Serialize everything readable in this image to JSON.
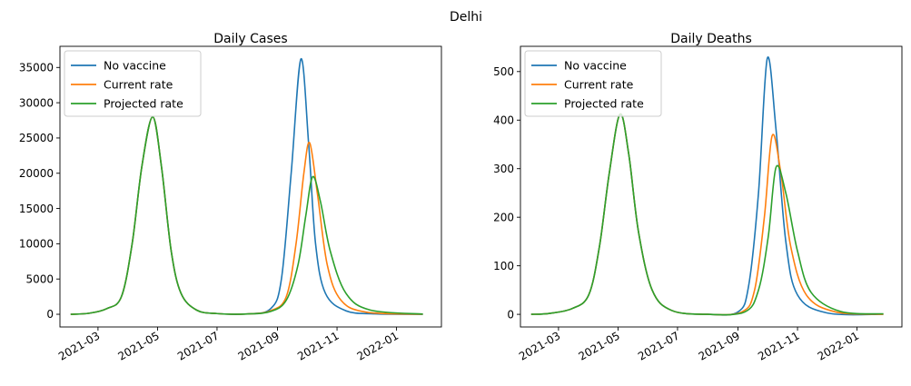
{
  "figure": {
    "title": "Delhi"
  },
  "chart_data": [
    {
      "type": "line",
      "title": "Daily Cases",
      "xlabel": "",
      "ylabel": "",
      "x_axis": "date",
      "xlim": [
        "2021-01-21",
        "2022-02-16"
      ],
      "ylim": [
        -1800,
        38000
      ],
      "x_ticks": [
        "2021-03",
        "2021-05",
        "2021-07",
        "2021-09",
        "2021-11",
        "2022-01"
      ],
      "y_ticks": [
        0,
        5000,
        10000,
        15000,
        20000,
        25000,
        30000,
        35000
      ],
      "y_tick_labels": [
        "0",
        "5000",
        "10000",
        "15000",
        "20000",
        "25000",
        "30000",
        "35000"
      ],
      "grid": false,
      "legend_position": "top-left",
      "series": [
        {
          "name": "No vaccine",
          "color": "#1f77b4",
          "points": [
            [
              "2021-02-01",
              0
            ],
            [
              "2021-02-20",
              150
            ],
            [
              "2021-03-10",
              800
            ],
            [
              "2021-03-25",
              2500
            ],
            [
              "2021-04-05",
              10000
            ],
            [
              "2021-04-15",
              21000
            ],
            [
              "2021-04-26",
              28000
            ],
            [
              "2021-05-05",
              21000
            ],
            [
              "2021-05-15",
              9000
            ],
            [
              "2021-05-25",
              3000
            ],
            [
              "2021-06-10",
              600
            ],
            [
              "2021-07-01",
              100
            ],
            [
              "2021-08-01",
              50
            ],
            [
              "2021-08-25",
              800
            ],
            [
              "2021-09-05",
              5000
            ],
            [
              "2021-09-15",
              20000
            ],
            [
              "2021-09-25",
              36200
            ],
            [
              "2021-10-03",
              24000
            ],
            [
              "2021-10-10",
              10000
            ],
            [
              "2021-10-20",
              3000
            ],
            [
              "2021-11-10",
              500
            ],
            [
              "2021-12-10",
              60
            ],
            [
              "2022-01-28",
              0
            ]
          ]
        },
        {
          "name": "Current rate",
          "color": "#ff7f0e",
          "points": [
            [
              "2021-02-01",
              0
            ],
            [
              "2021-02-20",
              150
            ],
            [
              "2021-03-10",
              800
            ],
            [
              "2021-03-25",
              2500
            ],
            [
              "2021-04-05",
              10000
            ],
            [
              "2021-04-15",
              21000
            ],
            [
              "2021-04-26",
              28000
            ],
            [
              "2021-05-05",
              21000
            ],
            [
              "2021-05-15",
              9000
            ],
            [
              "2021-05-25",
              3000
            ],
            [
              "2021-06-10",
              600
            ],
            [
              "2021-07-01",
              100
            ],
            [
              "2021-08-01",
              50
            ],
            [
              "2021-08-25",
              500
            ],
            [
              "2021-09-10",
              2500
            ],
            [
              "2021-09-20",
              10000
            ],
            [
              "2021-09-28",
              20000
            ],
            [
              "2021-10-04",
              24300
            ],
            [
              "2021-10-12",
              17000
            ],
            [
              "2021-10-22",
              7000
            ],
            [
              "2021-11-05",
              2000
            ],
            [
              "2021-12-01",
              300
            ],
            [
              "2022-01-28",
              10
            ]
          ]
        },
        {
          "name": "Projected rate",
          "color": "#2ca02c",
          "points": [
            [
              "2021-02-01",
              0
            ],
            [
              "2021-02-20",
              150
            ],
            [
              "2021-03-10",
              800
            ],
            [
              "2021-03-25",
              2500
            ],
            [
              "2021-04-05",
              10000
            ],
            [
              "2021-04-15",
              21000
            ],
            [
              "2021-04-26",
              28000
            ],
            [
              "2021-05-05",
              21000
            ],
            [
              "2021-05-15",
              9000
            ],
            [
              "2021-05-25",
              3000
            ],
            [
              "2021-06-10",
              600
            ],
            [
              "2021-07-01",
              100
            ],
            [
              "2021-08-01",
              50
            ],
            [
              "2021-08-25",
              400
            ],
            [
              "2021-09-10",
              2000
            ],
            [
              "2021-09-22",
              7000
            ],
            [
              "2021-09-30",
              14000
            ],
            [
              "2021-10-07",
              19500
            ],
            [
              "2021-10-15",
              16000
            ],
            [
              "2021-10-25",
              9000
            ],
            [
              "2021-11-10",
              3000
            ],
            [
              "2021-12-05",
              600
            ],
            [
              "2022-01-28",
              30
            ]
          ]
        }
      ]
    },
    {
      "type": "line",
      "title": "Daily Deaths",
      "xlabel": "",
      "ylabel": "",
      "x_axis": "date",
      "xlim": [
        "2021-01-21",
        "2022-02-16"
      ],
      "ylim": [
        -26,
        552
      ],
      "x_ticks": [
        "2021-03",
        "2021-05",
        "2021-07",
        "2021-09",
        "2021-11",
        "2022-01"
      ],
      "y_ticks": [
        0,
        100,
        200,
        300,
        400,
        500
      ],
      "y_tick_labels": [
        "0",
        "100",
        "200",
        "300",
        "400",
        "500"
      ],
      "grid": false,
      "legend_position": "top-left",
      "series": [
        {
          "name": "No vaccine",
          "color": "#1f77b4",
          "points": [
            [
              "2021-02-01",
              0
            ],
            [
              "2021-02-20",
              2
            ],
            [
              "2021-03-15",
              12
            ],
            [
              "2021-04-01",
              40
            ],
            [
              "2021-04-12",
              140
            ],
            [
              "2021-04-22",
              290
            ],
            [
              "2021-05-03",
              412
            ],
            [
              "2021-05-12",
              330
            ],
            [
              "2021-05-22",
              170
            ],
            [
              "2021-06-05",
              50
            ],
            [
              "2021-06-25",
              8
            ],
            [
              "2021-08-01",
              0
            ],
            [
              "2021-09-01",
              5
            ],
            [
              "2021-09-12",
              60
            ],
            [
              "2021-09-22",
              250
            ],
            [
              "2021-10-01",
              527
            ],
            [
              "2021-10-10",
              380
            ],
            [
              "2021-10-20",
              150
            ],
            [
              "2021-11-01",
              40
            ],
            [
              "2021-12-01",
              3
            ],
            [
              "2022-01-28",
              0
            ]
          ]
        },
        {
          "name": "Current rate",
          "color": "#ff7f0e",
          "points": [
            [
              "2021-02-01",
              0
            ],
            [
              "2021-02-20",
              2
            ],
            [
              "2021-03-15",
              12
            ],
            [
              "2021-04-01",
              40
            ],
            [
              "2021-04-12",
              140
            ],
            [
              "2021-04-22",
              290
            ],
            [
              "2021-05-03",
              412
            ],
            [
              "2021-05-12",
              330
            ],
            [
              "2021-05-22",
              170
            ],
            [
              "2021-06-05",
              50
            ],
            [
              "2021-06-25",
              8
            ],
            [
              "2021-08-01",
              0
            ],
            [
              "2021-09-05",
              5
            ],
            [
              "2021-09-18",
              50
            ],
            [
              "2021-09-28",
              200
            ],
            [
              "2021-10-06",
              368
            ],
            [
              "2021-10-15",
              290
            ],
            [
              "2021-10-25",
              140
            ],
            [
              "2021-11-10",
              40
            ],
            [
              "2021-12-10",
              5
            ],
            [
              "2022-01-28",
              0
            ]
          ]
        },
        {
          "name": "Projected rate",
          "color": "#2ca02c",
          "points": [
            [
              "2021-02-01",
              0
            ],
            [
              "2021-02-20",
              2
            ],
            [
              "2021-03-15",
              12
            ],
            [
              "2021-04-01",
              40
            ],
            [
              "2021-04-12",
              140
            ],
            [
              "2021-04-22",
              290
            ],
            [
              "2021-05-03",
              412
            ],
            [
              "2021-05-12",
              330
            ],
            [
              "2021-05-22",
              170
            ],
            [
              "2021-06-05",
              50
            ],
            [
              "2021-06-25",
              8
            ],
            [
              "2021-08-01",
              0
            ],
            [
              "2021-09-08",
              5
            ],
            [
              "2021-09-22",
              50
            ],
            [
              "2021-10-02",
              160
            ],
            [
              "2021-10-10",
              303
            ],
            [
              "2021-10-20",
              250
            ],
            [
              "2021-11-01",
              130
            ],
            [
              "2021-11-15",
              45
            ],
            [
              "2021-12-15",
              6
            ],
            [
              "2022-01-28",
              1
            ]
          ]
        }
      ]
    }
  ]
}
